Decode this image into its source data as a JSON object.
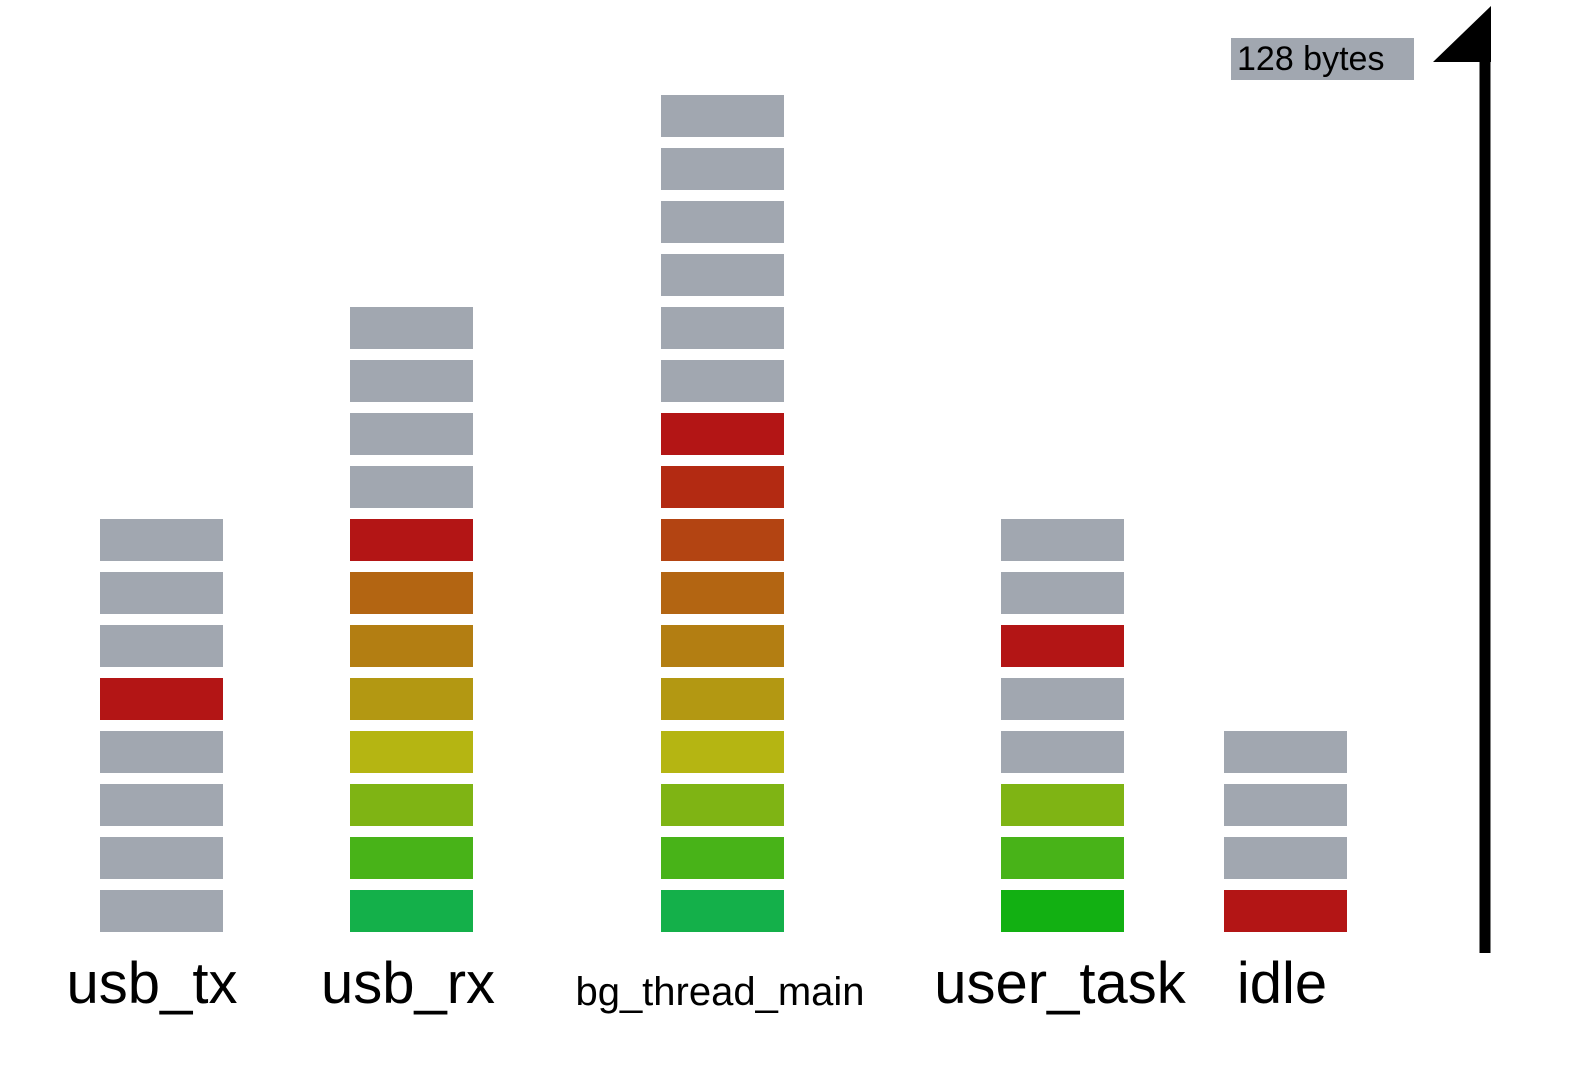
{
  "legend": {
    "label": "128 bytes"
  },
  "colors": {
    "unused": "#a1a7b0",
    "level": [
      "#14b04a",
      "#48b318",
      "#7fb414",
      "#b5b512",
      "#b39812",
      "#b37e12",
      "#b36512",
      "#b34412",
      "#b32a12",
      "#b31515"
    ],
    "peak": "#b31515",
    "user_task_base": "#12b012"
  },
  "tasks": [
    {
      "name": "usb_tx",
      "size": "big",
      "blocks": [
        "unused",
        "unused",
        "unused",
        "unused",
        "peak",
        "unused",
        "unused",
        "unused"
      ]
    },
    {
      "name": "usb_rx",
      "size": "big",
      "blocks": [
        "#14b04a",
        "#48b318",
        "#7fb414",
        "#b5b512",
        "#b39812",
        "#b37e12",
        "#b36512",
        "peak",
        "unused",
        "unused",
        "unused",
        "unused"
      ]
    },
    {
      "name": "bg_thread_main",
      "size": "small",
      "blocks": [
        "#14b04a",
        "#48b318",
        "#7fb414",
        "#b5b512",
        "#b39812",
        "#b37e12",
        "#b36512",
        "#b34412",
        "#b32a12",
        "peak",
        "unused",
        "unused",
        "unused",
        "unused",
        "unused",
        "unused"
      ]
    },
    {
      "name": "user_task",
      "size": "big",
      "blocks": [
        "#12b012",
        "#48b318",
        "#7fb414",
        "unused",
        "unused",
        "peak",
        "unused",
        "unused"
      ]
    },
    {
      "name": "idle",
      "size": "big",
      "blocks": [
        "peak",
        "unused",
        "unused",
        "unused"
      ]
    }
  ]
}
